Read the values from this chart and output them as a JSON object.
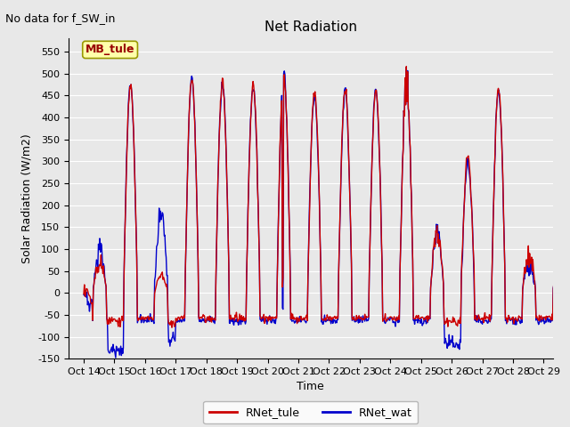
{
  "title": "Net Radiation",
  "xlabel": "Time",
  "ylabel": "Solar Radiation (W/m2)",
  "annotation_text": "No data for f_SW_in",
  "legend_label1": "RNet_tule",
  "legend_label2": "RNet_wat",
  "site_label": "MB_tule",
  "ylim": [
    -150,
    580
  ],
  "xlim_days": [
    13.5,
    29.3
  ],
  "color_tule": "#cc0000",
  "color_wat": "#0000cc",
  "bg_color": "#e8e8e8",
  "fig_bg_color": "#e8e8e8",
  "grid_color": "#ffffff",
  "site_box_facecolor": "#ffffaa",
  "site_box_edgecolor": "#999900",
  "site_text_color": "#990000",
  "xtick_labels": [
    "Oct 14",
    "Oct 15",
    "Oct 16",
    "Oct 17",
    "Oct 18",
    "Oct 19",
    "Oct 20",
    "Oct 21",
    "Oct 22",
    "Oct 23",
    "Oct 24",
    "Oct 25",
    "Oct 26",
    "Oct 27",
    "Oct 28",
    "Oct 29"
  ],
  "xtick_positions": [
    14,
    15,
    16,
    17,
    18,
    19,
    20,
    21,
    22,
    23,
    24,
    25,
    26,
    27,
    28,
    29
  ],
  "ytick_positions": [
    -150,
    -100,
    -50,
    0,
    50,
    100,
    150,
    200,
    250,
    300,
    350,
    400,
    450,
    500,
    550
  ],
  "line_width": 1.0,
  "annotation_fontsize": 9,
  "title_fontsize": 11,
  "axis_label_fontsize": 9,
  "tick_fontsize": 8,
  "legend_fontsize": 9,
  "site_fontsize": 9
}
